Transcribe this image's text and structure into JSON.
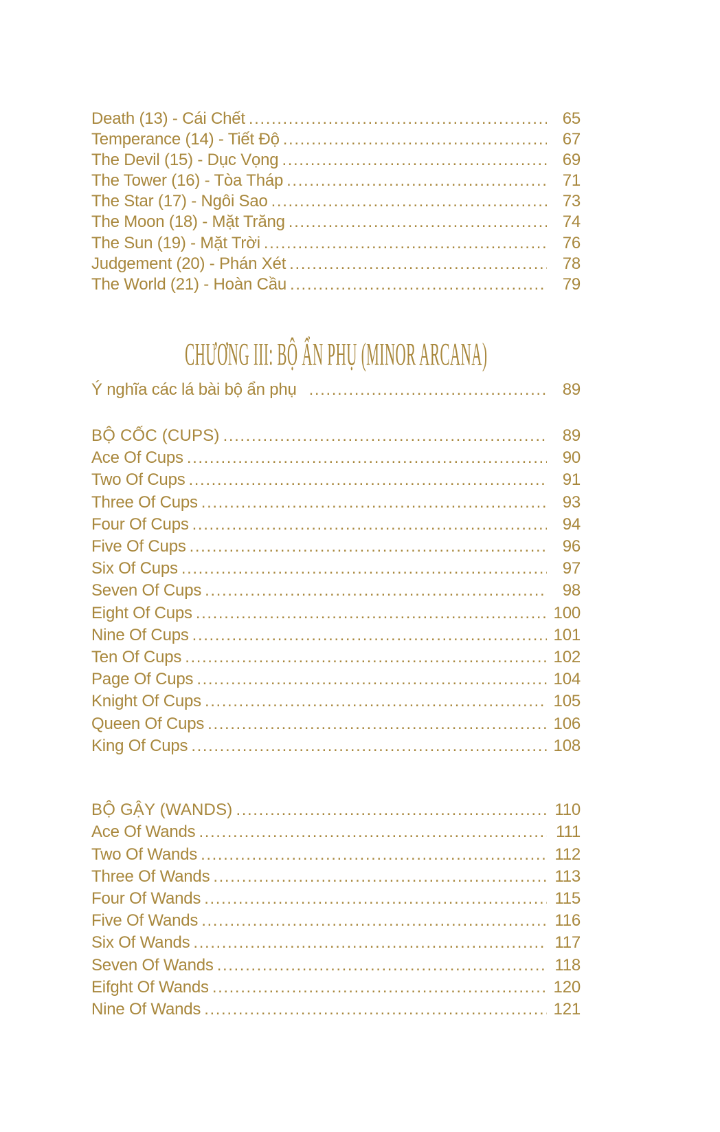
{
  "meta": {
    "accent_color": "#a8873c",
    "background_color": "#ffffff"
  },
  "toc": {
    "major_arcana": {
      "entries": [
        {
          "label": "Death (13) - Cái Chết",
          "page": "65"
        },
        {
          "label": "Temperance (14) - Tiết Độ",
          "page": "67"
        },
        {
          "label": "The Devil (15) - Dục Vọng",
          "page": "69"
        },
        {
          "label": "The Tower (16) - Tòa Tháp",
          "page": "71"
        },
        {
          "label": "The Star (17) - Ngôi Sao",
          "page": "73"
        },
        {
          "label": "The Moon (18) - Mặt Trăng",
          "page": "74"
        },
        {
          "label": "The Sun (19) - Mặt Trời",
          "page": "76"
        },
        {
          "label": "Judgement (20) - Phán Xét",
          "page": "78"
        },
        {
          "label": "The World (21) - Hoàn Cầu",
          "page": "79"
        }
      ]
    },
    "chapter_heading": "CHƯƠNG III: BỘ ẨN PHỤ (MINOR ARCANA)",
    "intro": {
      "label": "Ý nghĩa các lá bài bộ ẩn phụ",
      "page": "89"
    },
    "cups": {
      "heading": {
        "label": "BỘ CỐC (CUPS)",
        "page": "89"
      },
      "entries": [
        {
          "label": "Ace Of Cups",
          "page": "90"
        },
        {
          "label": "Two Of Cups",
          "page": "91"
        },
        {
          "label": "Three Of Cups",
          "page": "93"
        },
        {
          "label": "Four Of Cups",
          "page": "94"
        },
        {
          "label": "Five Of Cups",
          "page": "96"
        },
        {
          "label": "Six Of Cups",
          "page": "97"
        },
        {
          "label": "Seven Of Cups",
          "page": "98"
        },
        {
          "label": "Eight Of Cups",
          "page": "100"
        },
        {
          "label": "Nine Of Cups",
          "page": "101"
        },
        {
          "label": "Ten Of Cups",
          "page": "102"
        },
        {
          "label": "Page Of Cups",
          "page": "104"
        },
        {
          "label": "Knight Of Cups",
          "page": "105"
        },
        {
          "label": "Queen Of Cups",
          "page": "106"
        },
        {
          "label": "King Of Cups",
          "page": "108"
        }
      ]
    },
    "wands": {
      "heading": {
        "label": "BỘ GẬY (WANDS)",
        "page": "110"
      },
      "entries": [
        {
          "label": "Ace Of Wands",
          "page": "111"
        },
        {
          "label": "Two Of Wands",
          "page": "112"
        },
        {
          "label": "Three Of Wands",
          "page": "113"
        },
        {
          "label": "Four Of Wands",
          "page": "115"
        },
        {
          "label": "Five Of Wands",
          "page": "116"
        },
        {
          "label": "Six Of Wands",
          "page": "117"
        },
        {
          "label": "Seven Of Wands",
          "page": "118"
        },
        {
          "label": "Eifght Of Wands",
          "page": "120"
        },
        {
          "label": "Nine Of Wands",
          "page": "121"
        }
      ]
    }
  }
}
